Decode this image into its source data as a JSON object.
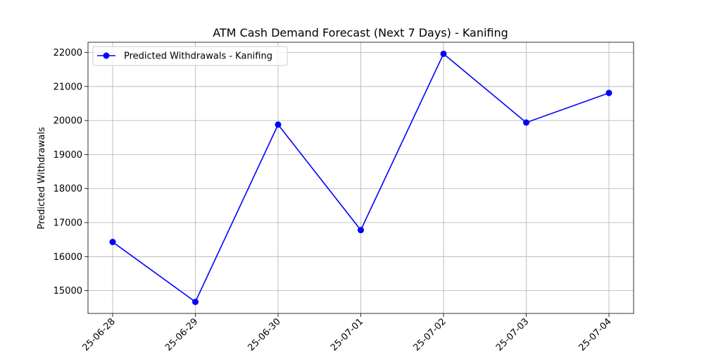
{
  "chart_data": {
    "type": "line",
    "title": "ATM Cash Demand Forecast (Next 7 Days) - Kanifing",
    "xlabel": "",
    "ylabel": "Predicted Withdrawals",
    "x": [
      "2025-06-28",
      "2025-06-29",
      "2025-06-30",
      "2025-07-01",
      "2025-07-02",
      "2025-07-03",
      "2025-07-04"
    ],
    "x_tick_labels": [
      "25-06-28",
      "25-06-29",
      "25-06-30",
      "25-07-01",
      "25-07-02",
      "25-07-03",
      "25-07-04"
    ],
    "series": [
      {
        "name": "Predicted Withdrawals - Kanifing",
        "color": "#0000ff",
        "marker": "circle",
        "values": [
          16430,
          14670,
          19880,
          16780,
          21960,
          19940,
          20810
        ]
      }
    ],
    "ylim": [
      14330,
      22300
    ],
    "y_ticks": [
      15000,
      16000,
      17000,
      18000,
      19000,
      20000,
      21000,
      22000
    ],
    "y_tick_labels": [
      "15000",
      "16000",
      "17000",
      "18000",
      "19000",
      "20000",
      "21000",
      "22000"
    ],
    "grid": true,
    "legend_position": "upper-left"
  }
}
